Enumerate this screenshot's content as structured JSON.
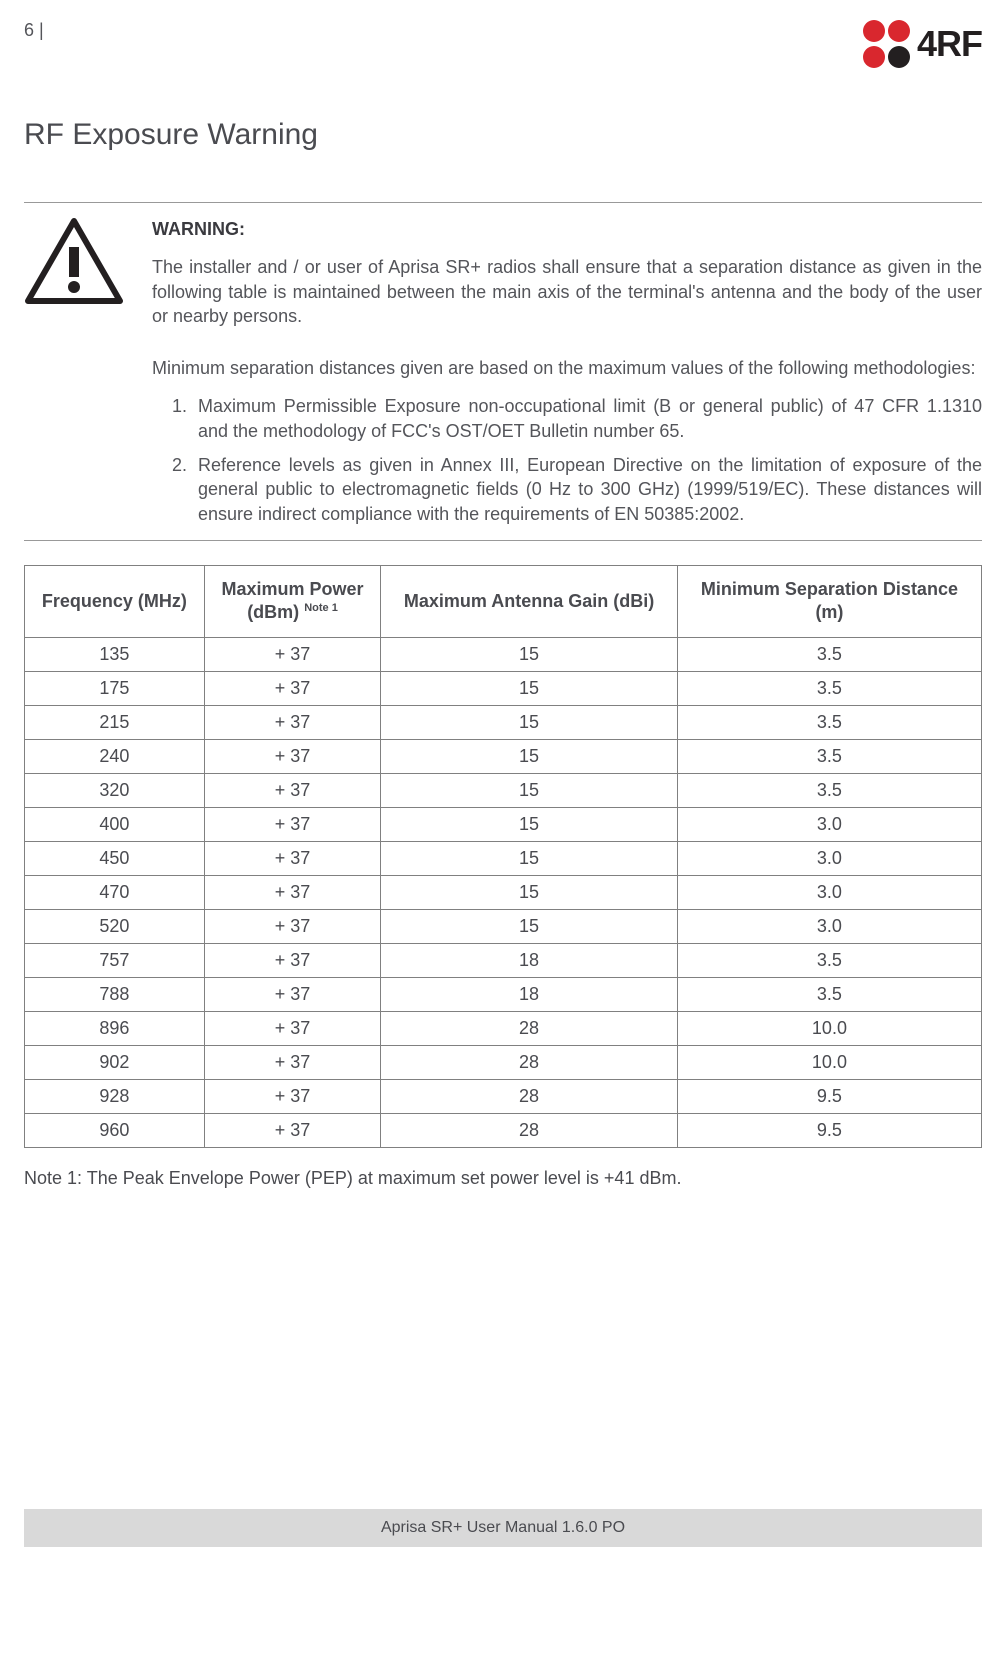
{
  "header": {
    "page_number": "6 |",
    "logo_text": "4RF"
  },
  "title": "RF Exposure Warning",
  "warning": {
    "label": "WARNING:",
    "p1": "The installer and / or user of Aprisa SR+ radios shall ensure that a separation distance as given in the following table is maintained between the main axis of the terminal's antenna and the body of the user or nearby persons.",
    "p2": "Minimum separation distances given are based on the maximum values of the following methodologies:",
    "li1": "Maximum Permissible Exposure non-occupational limit (B or general public) of 47 CFR 1.1310 and the methodology of FCC's OST/OET Bulletin number 65.",
    "li2": "Reference levels as given in Annex III, European Directive on the limitation of exposure of the general public to electromagnetic fields (0 Hz to 300 GHz) (1999/519/EC). These distances will ensure indirect compliance with the requirements of EN 50385:2002."
  },
  "table": {
    "headers": {
      "freq": "Frequency (MHz)",
      "power_a": "Maximum Power",
      "power_b": "(dBm) ",
      "power_note": "Note 1",
      "gain": "Maximum Antenna Gain (dBi)",
      "dist_a": "Minimum Separation Distance",
      "dist_b": "(m)"
    },
    "rows": [
      {
        "f": "135",
        "p": "+ 37",
        "g": "15",
        "d": "3.5"
      },
      {
        "f": "175",
        "p": "+ 37",
        "g": "15",
        "d": "3.5"
      },
      {
        "f": "215",
        "p": "+ 37",
        "g": "15",
        "d": "3.5"
      },
      {
        "f": "240",
        "p": "+ 37",
        "g": "15",
        "d": "3.5"
      },
      {
        "f": "320",
        "p": "+ 37",
        "g": "15",
        "d": "3.5"
      },
      {
        "f": "400",
        "p": "+ 37",
        "g": "15",
        "d": "3.0"
      },
      {
        "f": "450",
        "p": "+ 37",
        "g": "15",
        "d": "3.0"
      },
      {
        "f": "470",
        "p": "+ 37",
        "g": "15",
        "d": "3.0"
      },
      {
        "f": "520",
        "p": "+ 37",
        "g": "15",
        "d": "3.0"
      },
      {
        "f": "757",
        "p": "+ 37",
        "g": "18",
        "d": "3.5"
      },
      {
        "f": "788",
        "p": "+ 37",
        "g": "18",
        "d": "3.5"
      },
      {
        "f": "896",
        "p": "+ 37",
        "g": "28",
        "d": "10.0"
      },
      {
        "f": "902",
        "p": "+ 37",
        "g": "28",
        "d": "10.0"
      },
      {
        "f": "928",
        "p": "+ 37",
        "g": "28",
        "d": "9.5"
      },
      {
        "f": "960",
        "p": "+ 37",
        "g": "28",
        "d": "9.5"
      }
    ]
  },
  "note": "Note 1: The Peak Envelope Power (PEP) at maximum set power level is +41 dBm.",
  "footer": "Aprisa SR+ User Manual 1.6.0 PO"
}
